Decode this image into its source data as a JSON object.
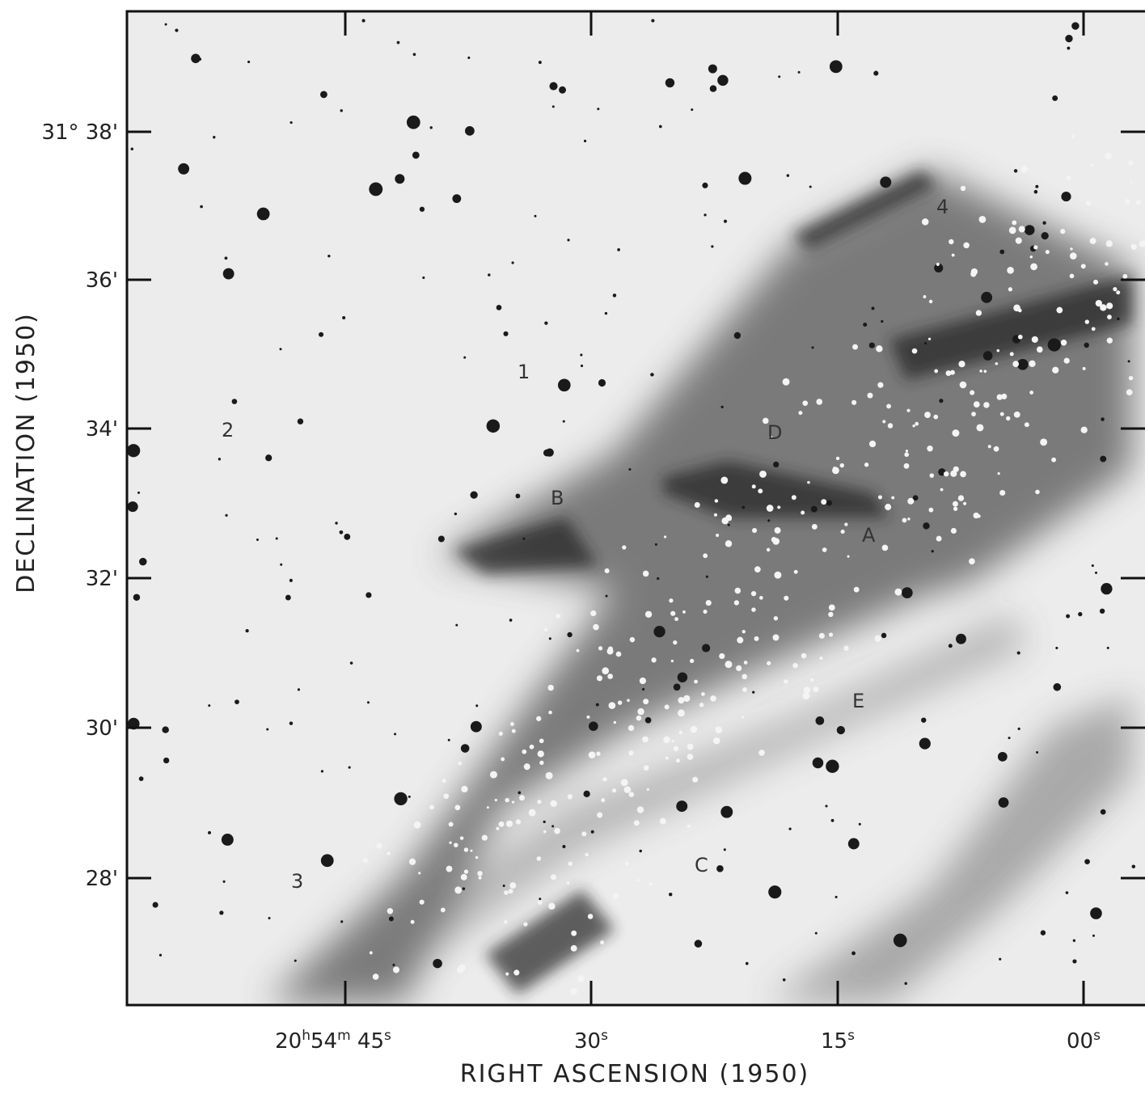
{
  "figure": {
    "x_axis": {
      "title": "RIGHT ASCENSION (1950)",
      "tick_labels": [
        [
          "20",
          "h",
          "54",
          "m",
          " 45",
          "s"
        ],
        [
          "30",
          "s"
        ],
        [
          "15",
          "s"
        ],
        [
          "00",
          "s"
        ]
      ]
    },
    "y_axis": {
      "title": "DECLINATION (1950)",
      "tick_labels": [
        "31° 38'",
        "36'",
        "34'",
        "32'",
        "30'",
        "28'"
      ]
    },
    "region_labels": [
      "1",
      "2",
      "3",
      "4",
      "A",
      "B",
      "C",
      "D",
      "E"
    ]
  }
}
